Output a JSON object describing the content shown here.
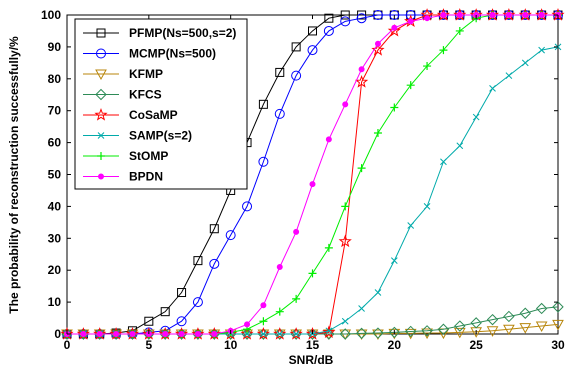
{
  "chart_data": {
    "type": "line",
    "title": "",
    "xlabel": "SNR/dB",
    "ylabel": "The probability of reconstruction successfully/%",
    "xlim": [
      0,
      30
    ],
    "ylim": [
      0,
      100
    ],
    "xticks": [
      0,
      5,
      10,
      15,
      20,
      25,
      30
    ],
    "yticks": [
      0,
      10,
      20,
      30,
      40,
      50,
      60,
      70,
      80,
      90,
      100
    ],
    "grid": false,
    "legend_position": "top-left",
    "x": [
      0,
      1,
      2,
      3,
      4,
      5,
      6,
      7,
      8,
      9,
      10,
      11,
      12,
      13,
      14,
      15,
      16,
      17,
      18,
      19,
      20,
      21,
      22,
      23,
      24,
      25,
      26,
      27,
      28,
      29,
      30
    ],
    "series": [
      {
        "name": "PFMP(Ns=500,s=2)",
        "color": "#000000",
        "marker": "square",
        "values": [
          0,
          0,
          0,
          0.3,
          1,
          4,
          7,
          13,
          23,
          33,
          45,
          60,
          72,
          82,
          90,
          95,
          99,
          100,
          100,
          100,
          100,
          100,
          100,
          100,
          100,
          100,
          100,
          100,
          100,
          100,
          100
        ]
      },
      {
        "name": "MCMP(Ns=500)",
        "color": "#0000ff",
        "marker": "circle",
        "values": [
          0,
          0,
          0,
          0,
          0,
          0.5,
          1,
          4,
          10,
          22,
          31,
          40,
          54,
          69,
          81,
          89,
          95,
          98,
          99,
          100,
          100,
          100,
          100,
          100,
          100,
          100,
          100,
          100,
          100,
          100,
          100
        ]
      },
      {
        "name": "KFMP",
        "color": "#b8860b",
        "marker": "triangle-down",
        "values": [
          0,
          0,
          0,
          0,
          0,
          0,
          0,
          0,
          0,
          0,
          0,
          0,
          0,
          0,
          0,
          0,
          0,
          0,
          0,
          0,
          0.2,
          0.2,
          0.3,
          0.3,
          0.5,
          0.7,
          1,
          1.5,
          2,
          2.5,
          3
        ]
      },
      {
        "name": "KFCS",
        "color": "#2e8b57",
        "marker": "diamond",
        "values": [
          0,
          0,
          0,
          0,
          0,
          0,
          0,
          0,
          0,
          0,
          0,
          0,
          0,
          0,
          0,
          0,
          0,
          0,
          0.2,
          0.3,
          0.5,
          0.8,
          1,
          1.5,
          2.5,
          3.5,
          4.5,
          5.5,
          6.5,
          8,
          8.5
        ]
      },
      {
        "name": "CoSaMP",
        "color": "#ff0000",
        "marker": "star",
        "values": [
          0,
          0,
          0,
          0,
          0,
          0,
          0,
          0,
          0,
          0,
          0,
          0,
          0,
          0,
          0,
          0,
          0.5,
          29,
          79,
          89,
          95,
          98,
          100,
          100,
          100,
          100,
          100,
          100,
          100,
          100,
          100
        ]
      },
      {
        "name": "SAMP(s=2)",
        "color": "#00aaaa",
        "marker": "x",
        "values": [
          0,
          0,
          0,
          0,
          0,
          0,
          0,
          0,
          0,
          0,
          0,
          0,
          0,
          0,
          0,
          0,
          1,
          4,
          8,
          13,
          23,
          34,
          40,
          54,
          59,
          68,
          77,
          81,
          85,
          89,
          90
        ]
      },
      {
        "name": "StOMP",
        "color": "#00ee00",
        "marker": "plus",
        "values": [
          0,
          0,
          0,
          0,
          0,
          0,
          0,
          0,
          0,
          0,
          0.5,
          1.5,
          4,
          7,
          11,
          19,
          27,
          40,
          52,
          63,
          71,
          78,
          84,
          89,
          95,
          99,
          100,
          100,
          100,
          100,
          100
        ]
      },
      {
        "name": "BPDN",
        "color": "#ff00ff",
        "marker": "dot",
        "values": [
          0,
          0,
          0,
          0,
          0,
          0,
          0,
          0,
          0,
          0,
          1,
          3,
          9,
          21,
          32,
          47,
          61,
          72,
          83,
          91,
          96,
          98,
          99,
          100,
          100,
          100,
          100,
          100,
          100,
          100,
          100
        ]
      }
    ]
  }
}
